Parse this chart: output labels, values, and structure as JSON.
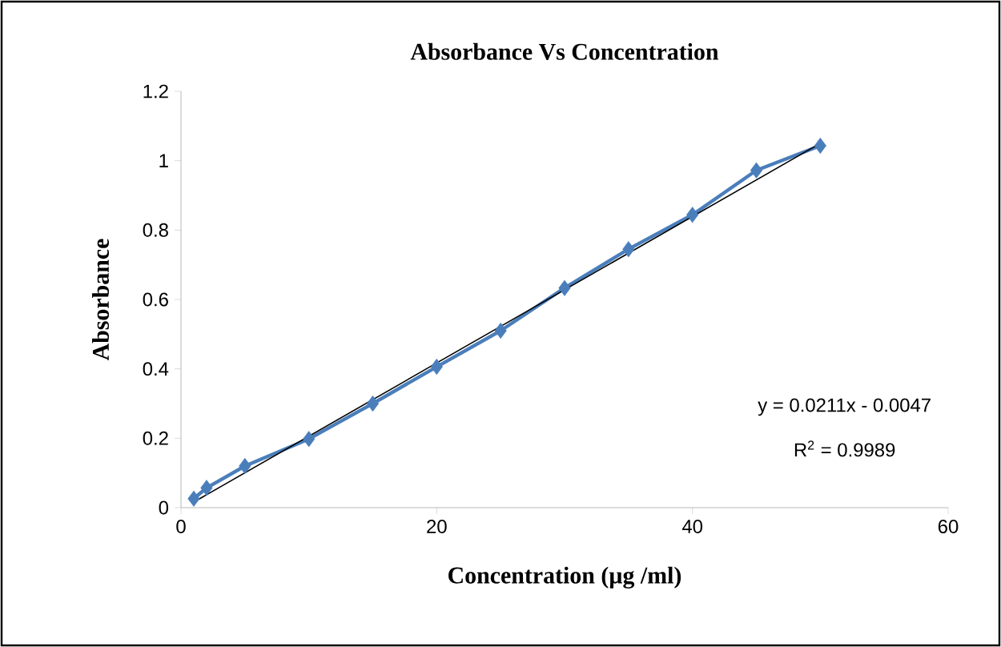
{
  "chart_data": {
    "type": "line",
    "title": "Absorbance Vs Concentration",
    "xlabel": "Concentration  (µg /ml)",
    "ylabel": "Absorbance",
    "xlim": [
      0,
      60
    ],
    "xticks": [
      0,
      20,
      40,
      60
    ],
    "ylim": [
      0,
      1.2
    ],
    "yticks": [
      0,
      0.2,
      0.4,
      0.6,
      0.8,
      1,
      1.2
    ],
    "grid": false,
    "series": [
      {
        "color": "#4a7ebb",
        "marker": "diamond",
        "x": [
          1,
          2,
          5,
          10,
          15,
          20,
          25,
          30,
          35,
          40,
          45,
          50
        ],
        "values": [
          0.026,
          0.057,
          0.12,
          0.198,
          0.3,
          0.406,
          0.51,
          0.633,
          0.745,
          0.844,
          0.972,
          1.043
        ]
      },
      {
        "color": "#000000",
        "marker": "none",
        "x": [
          1,
          50
        ],
        "values": [
          0.016,
          1.05
        ]
      }
    ],
    "annotations": [
      "y = 0.0211x - 0.0047",
      "R$^{2}$ = 0.9989"
    ]
  }
}
